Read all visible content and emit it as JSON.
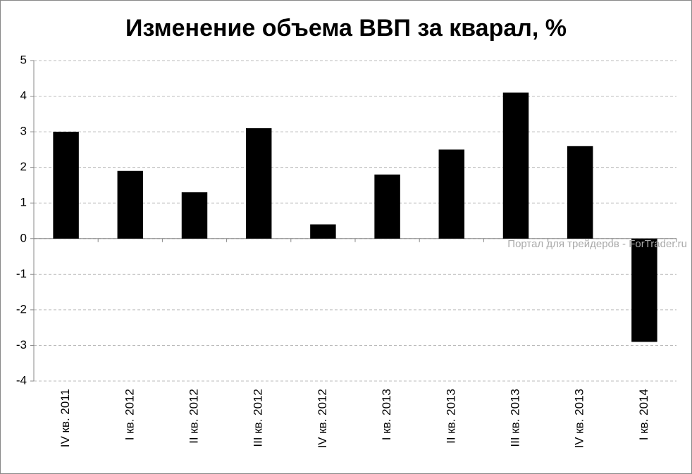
{
  "chart_data": {
    "type": "bar",
    "title": "Изменение объема ВВП за кварал, %",
    "categories": [
      "IV кв. 2011",
      "I кв. 2012",
      "II кв. 2012",
      "III кв. 2012",
      "IV кв. 2012",
      "I кв. 2013",
      "II кв. 2013",
      "III кв. 2013",
      "IV кв. 2013",
      "I кв. 2014"
    ],
    "values": [
      3.0,
      1.9,
      1.3,
      3.1,
      0.4,
      1.8,
      2.5,
      4.1,
      2.6,
      -2.9
    ],
    "color": "#000000",
    "ylim": [
      -4,
      5
    ],
    "yticks": [
      -4,
      -3,
      -2,
      -1,
      0,
      1,
      2,
      3,
      4,
      5
    ],
    "grid": true,
    "annotation": "Портал для трейдеров - ForTrader.ru"
  }
}
